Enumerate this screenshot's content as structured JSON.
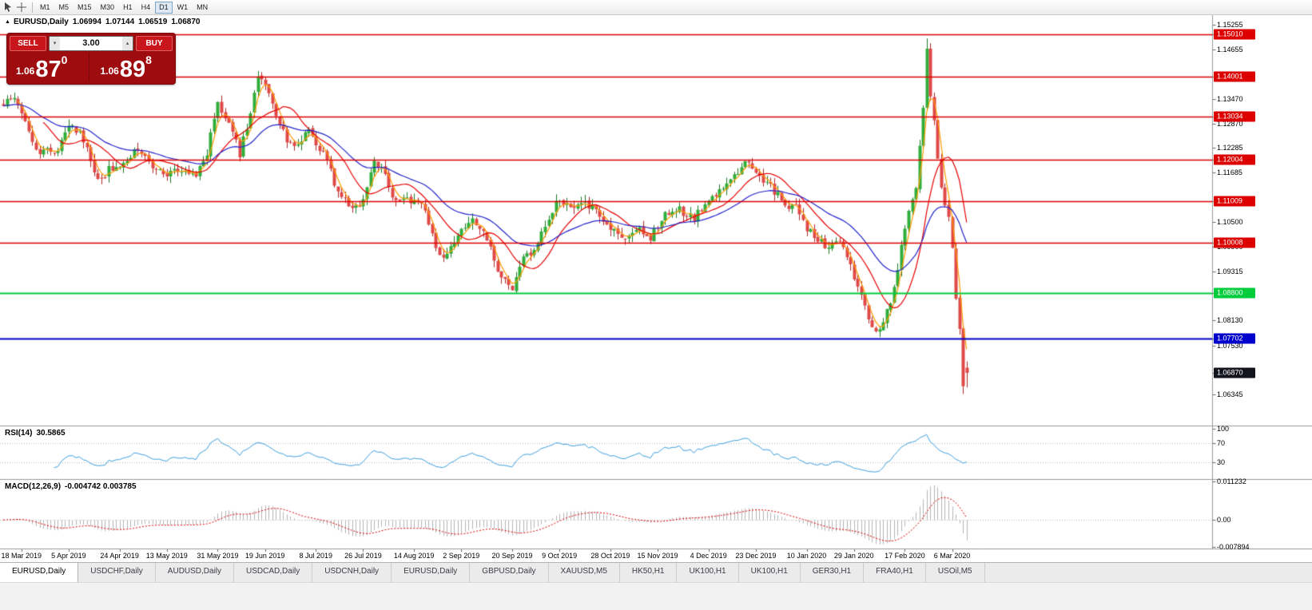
{
  "toolbar": {
    "timeframes": [
      "M1",
      "M5",
      "M15",
      "M30",
      "H1",
      "H4",
      "D1",
      "W1",
      "MN"
    ],
    "active_timeframe": "D1"
  },
  "chart_title": {
    "symbol": "EURUSD,Daily",
    "open": "1.06994",
    "high": "1.07144",
    "low": "1.06519",
    "close": "1.06870"
  },
  "one_click": {
    "sell_label": "SELL",
    "buy_label": "BUY",
    "volume": "3.00",
    "sell_price_small": "1.06",
    "sell_price_big": "87",
    "sell_price_sup": "0",
    "buy_price_small": "1.06",
    "buy_price_big": "89",
    "buy_price_sup": "8"
  },
  "indicators": {
    "rsi": {
      "label": "RSI(14)",
      "value": "30.5865",
      "axis_labels": [
        {
          "text": "100",
          "value": 100
        },
        {
          "text": "70",
          "value": 70
        },
        {
          "text": "30",
          "value": 30
        }
      ],
      "gridlines": [
        70,
        30
      ]
    },
    "macd": {
      "label": "MACD(12,26,9)",
      "values": "-0.004742 0.003785",
      "axis_max": {
        "text": "0.011232",
        "value": 0.011232
      },
      "axis_zero": {
        "text": "0.00",
        "value": 0
      },
      "axis_min": {
        "text": "-0.007894",
        "value": -0.007894
      }
    }
  },
  "price_axis": {
    "ticks": [
      {
        "text": "1.15255",
        "value": 1.15255
      },
      {
        "text": "1.14655",
        "value": 1.14655
      },
      {
        "text": "1.13470",
        "value": 1.1347
      },
      {
        "text": "1.12870",
        "value": 1.1287
      },
      {
        "text": "1.12285",
        "value": 1.12285
      },
      {
        "text": "1.11685",
        "value": 1.11685
      },
      {
        "text": "1.10500",
        "value": 1.105
      },
      {
        "text": "1.09900",
        "value": 1.099
      },
      {
        "text": "1.09315",
        "value": 1.09315
      },
      {
        "text": "1.08130",
        "value": 1.0813
      },
      {
        "text": "1.07530",
        "value": 1.0753
      },
      {
        "text": "1.06345",
        "value": 1.06345
      }
    ],
    "badges": [
      {
        "label": "1.15010",
        "value": 1.1501,
        "color": "#dd0000",
        "line": true,
        "lw": 1.5
      },
      {
        "label": "1.14001",
        "value": 1.14001,
        "color": "#dd0000",
        "line": true,
        "lw": 1.5
      },
      {
        "label": "1.13034",
        "value": 1.13034,
        "color": "#dd0000",
        "line": true,
        "lw": 1.5
      },
      {
        "label": "1.12004",
        "value": 1.12004,
        "color": "#dd0000",
        "line": true,
        "lw": 1.5
      },
      {
        "label": "1.11009",
        "value": 1.11009,
        "color": "#dd0000",
        "line": true,
        "lw": 1.5
      },
      {
        "label": "1.10008",
        "value": 1.10008,
        "color": "#dd0000",
        "line": true,
        "lw": 1.5
      },
      {
        "label": "1.08800",
        "value": 1.088,
        "color": "#00cc3c",
        "line": true,
        "lw": 2
      },
      {
        "label": "1.07702",
        "value": 1.07702,
        "color": "#0000cc",
        "line": true,
        "lw": 2
      },
      {
        "label": "1.06870",
        "value": 1.0687,
        "color": "#14141e",
        "line": false,
        "lw": 0
      }
    ]
  },
  "date_axis": [
    "18 Mar 2019",
    "5 Apr 2019",
    "24 Apr 2019",
    "13 May 2019",
    "31 May 2019",
    "19 Jun 2019",
    "8 Jul 2019",
    "26 Jul 2019",
    "14 Aug 2019",
    "2 Sep 2019",
    "20 Sep 2019",
    "9 Oct 2019",
    "28 Oct 2019",
    "15 Nov 2019",
    "4 Dec 2019",
    "23 Dec 2019",
    "10 Jan 2020",
    "29 Jan 2020",
    "17 Feb 2020",
    "6 Mar 2020"
  ],
  "tabs": [
    "EURUSD,Daily",
    "USDCHF,Daily",
    "AUDUSD,Daily",
    "USDCAD,Daily",
    "USDCNH,Daily",
    "EURUSD,Daily",
    "GBPUSD,Daily",
    "XAUUSD,M5",
    "HK50,H1",
    "UK100,H1",
    "UK100,H1",
    "GER30,H1",
    "FRA40,H1",
    "USOil,M5"
  ],
  "active_tab_index": 0,
  "chart_data": {
    "type": "candlestick",
    "symbol": "EURUSD",
    "period": "Daily",
    "bars": 266,
    "visible_price_range": [
      1.056,
      1.1548
    ],
    "anchors": [
      [
        0,
        1.1335
      ],
      [
        3,
        1.1355
      ],
      [
        6,
        1.1295
      ],
      [
        9,
        1.1215
      ],
      [
        12,
        1.123
      ],
      [
        15,
        1.1225
      ],
      [
        19,
        1.129
      ],
      [
        22,
        1.1245
      ],
      [
        26,
        1.1155
      ],
      [
        29,
        1.1175
      ],
      [
        33,
        1.1195
      ],
      [
        36,
        1.1215
      ],
      [
        40,
        1.12
      ],
      [
        44,
        1.1155
      ],
      [
        47,
        1.1185
      ],
      [
        50,
        1.1175
      ],
      [
        53,
        1.1165
      ],
      [
        56,
        1.122
      ],
      [
        59,
        1.133
      ],
      [
        62,
        1.129
      ],
      [
        65,
        1.1215
      ],
      [
        68,
        1.131
      ],
      [
        70,
        1.1395
      ],
      [
        73,
        1.1365
      ],
      [
        76,
        1.128
      ],
      [
        80,
        1.1225
      ],
      [
        84,
        1.127
      ],
      [
        88,
        1.1215
      ],
      [
        92,
        1.112
      ],
      [
        96,
        1.1075
      ],
      [
        99,
        1.1105
      ],
      [
        102,
        1.1195
      ],
      [
        105,
        1.1165
      ],
      [
        108,
        1.1095
      ],
      [
        112,
        1.1105
      ],
      [
        116,
        1.1085
      ],
      [
        119,
        1.099
      ],
      [
        122,
        1.0965
      ],
      [
        126,
        1.1035
      ],
      [
        129,
        1.106
      ],
      [
        133,
        1.101
      ],
      [
        136,
        1.093
      ],
      [
        140,
        1.0895
      ],
      [
        143,
        1.096
      ],
      [
        146,
        1.0985
      ],
      [
        150,
        1.1065
      ],
      [
        153,
        1.111
      ],
      [
        157,
        1.1075
      ],
      [
        160,
        1.1095
      ],
      [
        164,
        1.107
      ],
      [
        168,
        1.103
      ],
      [
        171,
        1.1005
      ],
      [
        175,
        1.1035
      ],
      [
        178,
        1.1015
      ],
      [
        182,
        1.1065
      ],
      [
        186,
        1.108
      ],
      [
        190,
        1.1055
      ],
      [
        194,
        1.111
      ],
      [
        198,
        1.1125
      ],
      [
        202,
        1.1175
      ],
      [
        205,
        1.12
      ],
      [
        208,
        1.116
      ],
      [
        212,
        1.1125
      ],
      [
        215,
        1.1095
      ],
      [
        218,
        1.1085
      ],
      [
        221,
        1.1035
      ],
      [
        224,
        1.1005
      ],
      [
        227,
        1.099
      ],
      [
        230,
        1.1
      ],
      [
        233,
        1.0945
      ],
      [
        236,
        1.087
      ],
      [
        239,
        1.08
      ],
      [
        241,
        1.0785
      ],
      [
        243,
        1.083
      ],
      [
        245,
        1.0885
      ],
      [
        247,
        1.0985
      ],
      [
        249,
        1.1075
      ],
      [
        251,
        1.114
      ],
      [
        253,
        1.133
      ],
      [
        254,
        1.1465
      ],
      [
        255,
        1.1355
      ],
      [
        256,
        1.1285
      ],
      [
        258,
        1.114
      ],
      [
        260,
        1.1055
      ],
      [
        261,
        1.099
      ],
      [
        262,
        1.087
      ],
      [
        263,
        1.079
      ],
      [
        264,
        1.0655
      ],
      [
        265,
        1.0687
      ]
    ],
    "wick_overrides": {
      "70": 1.1412,
      "254": 1.1492,
      "264": 1.0636
    },
    "last_candle": {
      "open": 1.06994,
      "high": 1.07144,
      "low": 1.06519,
      "close": 1.0687
    },
    "moving_averages": [
      {
        "type": "lwma",
        "period": 5,
        "color": "#ff9c00"
      },
      {
        "type": "sma",
        "period": 12,
        "color": "#e60000"
      },
      {
        "type": "ema",
        "period": 30,
        "color": "#2424cc"
      }
    ],
    "rsi_current": 30.5865,
    "macd_current": -0.004742,
    "macd_signal_current": 0.003785
  },
  "colors": {
    "bull_fill": "#2fae3a",
    "bull_edge": "#1c7a24",
    "bear_fill": "#e04848",
    "bear_edge": "#b02828",
    "rsi_line": "#3d9fe0",
    "macd_hist": "#b5b5b5",
    "macd_signal": "#e00000",
    "grid_dotted": "#bdbdbd",
    "separator": "#9a9a9a",
    "axis_line": "#9a9a9a"
  }
}
